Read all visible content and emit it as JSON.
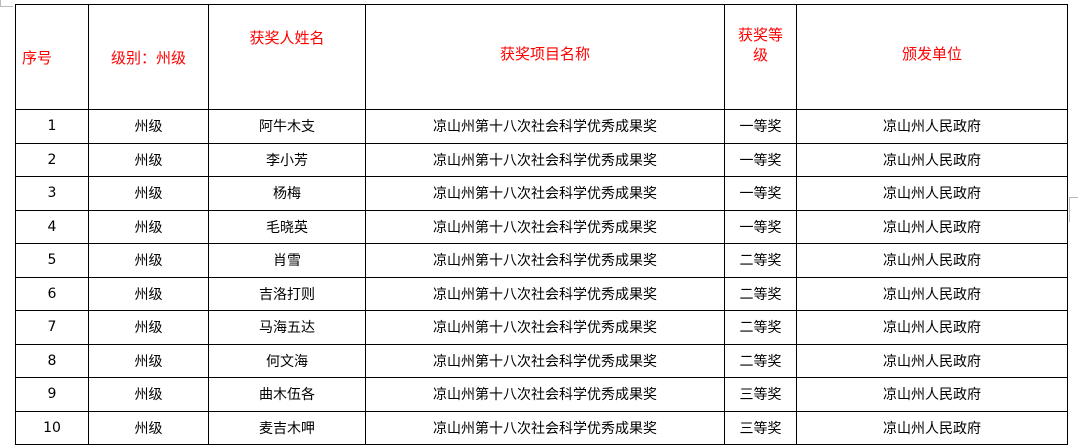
{
  "headers": [
    "序号",
    "级别：州级",
    "获奖人姓名",
    "获奖项目名称",
    "获奖等级",
    "颁发单位"
  ],
  "rows": [
    {
      "no": "1",
      "level": "州级",
      "name": "阿牛木支",
      "project": "凉山州第十八次社会科学优秀成果奖",
      "grade": "一等奖",
      "issuer": "凉山州人民政府"
    },
    {
      "no": "2",
      "level": "州级",
      "name": "李小芳",
      "project": "凉山州第十八次社会科学优秀成果奖",
      "grade": "一等奖",
      "issuer": "凉山州人民政府"
    },
    {
      "no": "3",
      "level": "州级",
      "name": "杨梅",
      "project": "凉山州第十八次社会科学优秀成果奖",
      "grade": "一等奖",
      "issuer": "凉山州人民政府"
    },
    {
      "no": "4",
      "level": "州级",
      "name": "毛晓英",
      "project": "凉山州第十八次社会科学优秀成果奖",
      "grade": "一等奖",
      "issuer": "凉山州人民政府"
    },
    {
      "no": "5",
      "level": "州级",
      "name": "肖雪",
      "project": "凉山州第十八次社会科学优秀成果奖",
      "grade": "二等奖",
      "issuer": "凉山州人民政府"
    },
    {
      "no": "6",
      "level": "州级",
      "name": "吉洛打则",
      "project": "凉山州第十八次社会科学优秀成果奖",
      "grade": "二等奖",
      "issuer": "凉山州人民政府"
    },
    {
      "no": "7",
      "level": "州级",
      "name": "马海五达",
      "project": "凉山州第十八次社会科学优秀成果奖",
      "grade": "二等奖",
      "issuer": "凉山州人民政府"
    },
    {
      "no": "8",
      "level": "州级",
      "name": "何文海",
      "project": "凉山州第十八次社会科学优秀成果奖",
      "grade": "二等奖",
      "issuer": "凉山州人民政府"
    },
    {
      "no": "9",
      "level": "州级",
      "name": "曲木伍各",
      "project": "凉山州第十八次社会科学优秀成果奖",
      "grade": "三等奖",
      "issuer": "凉山州人民政府"
    },
    {
      "no": "10",
      "level": "州级",
      "name": "麦吉木呷",
      "project": "凉山州第十八次社会科学优秀成果奖",
      "grade": "三等奖",
      "issuer": "凉山州人民政府"
    }
  ],
  "colors": {
    "header_text": "#ff0000",
    "body_text": "#000000",
    "border": "#000000"
  }
}
